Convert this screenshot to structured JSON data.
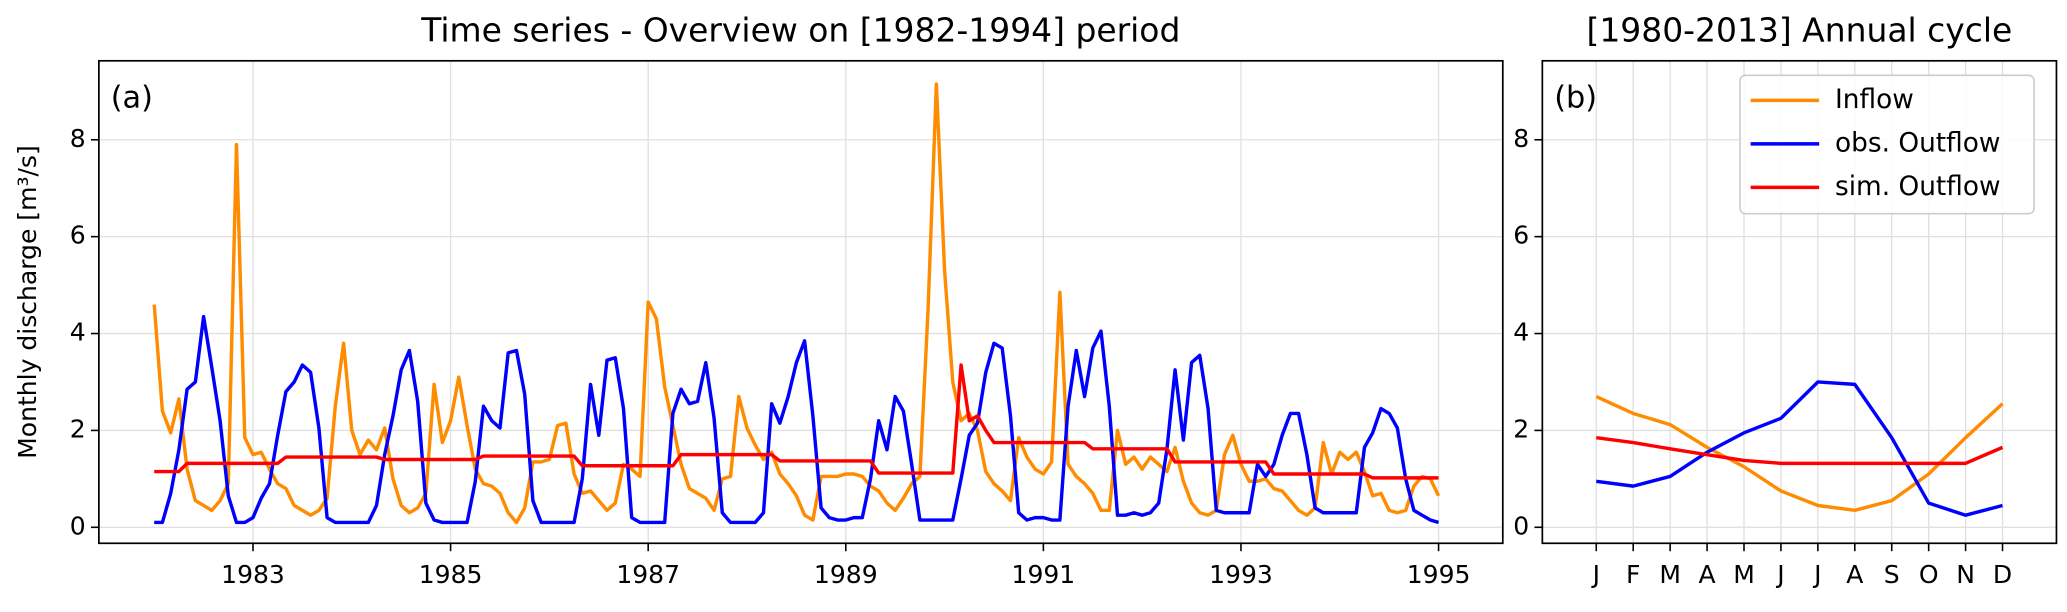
{
  "chart_data": [
    {
      "type": "line",
      "title": "Time series - Overview on [1982-1994] period",
      "ylabel": "Monthly discharge [m³/s]",
      "annotation": "(a)",
      "x": [
        1982.0,
        1982.083,
        1982.167,
        1982.25,
        1982.333,
        1982.417,
        1982.5,
        1982.583,
        1982.667,
        1982.75,
        1982.833,
        1982.917,
        1983.0,
        1983.083,
        1983.167,
        1983.25,
        1983.333,
        1983.417,
        1983.5,
        1983.583,
        1983.667,
        1983.75,
        1983.833,
        1983.917,
        1984.0,
        1984.083,
        1984.167,
        1984.25,
        1984.333,
        1984.417,
        1984.5,
        1984.583,
        1984.667,
        1984.75,
        1984.833,
        1984.917,
        1985.0,
        1985.083,
        1985.167,
        1985.25,
        1985.333,
        1985.417,
        1985.5,
        1985.583,
        1985.667,
        1985.75,
        1985.833,
        1985.917,
        1986.0,
        1986.083,
        1986.167,
        1986.25,
        1986.333,
        1986.417,
        1986.5,
        1986.583,
        1986.667,
        1986.75,
        1986.833,
        1986.917,
        1987.0,
        1987.083,
        1987.167,
        1987.25,
        1987.333,
        1987.417,
        1987.5,
        1987.583,
        1987.667,
        1987.75,
        1987.833,
        1987.917,
        1988.0,
        1988.083,
        1988.167,
        1988.25,
        1988.333,
        1988.417,
        1988.5,
        1988.583,
        1988.667,
        1988.75,
        1988.833,
        1988.917,
        1989.0,
        1989.083,
        1989.167,
        1989.25,
        1989.333,
        1989.417,
        1989.5,
        1989.583,
        1989.667,
        1989.75,
        1989.833,
        1989.917,
        1990.0,
        1990.083,
        1990.167,
        1990.25,
        1990.333,
        1990.417,
        1990.5,
        1990.583,
        1990.667,
        1990.75,
        1990.833,
        1990.917,
        1991.0,
        1991.083,
        1991.167,
        1991.25,
        1991.333,
        1991.417,
        1991.5,
        1991.583,
        1991.667,
        1991.75,
        1991.833,
        1991.917,
        1992.0,
        1992.083,
        1992.167,
        1992.25,
        1992.333,
        1992.417,
        1992.5,
        1992.583,
        1992.667,
        1992.75,
        1992.833,
        1992.917,
        1993.0,
        1993.083,
        1993.167,
        1993.25,
        1993.333,
        1993.417,
        1993.5,
        1993.583,
        1993.667,
        1993.75,
        1993.833,
        1993.917,
        1994.0,
        1994.083,
        1994.167,
        1994.25,
        1994.333,
        1994.417,
        1994.5,
        1994.583,
        1994.667,
        1994.75,
        1994.833,
        1994.917,
        1995.0
      ],
      "series": [
        {
          "color": "#ff8c00",
          "values": [
            4.6,
            2.4,
            1.95,
            2.65,
            1.2,
            0.55,
            0.45,
            0.35,
            0.55,
            0.9,
            7.9,
            1.85,
            1.5,
            1.55,
            1.2,
            0.9,
            0.8,
            0.45,
            0.35,
            0.25,
            0.35,
            0.6,
            2.5,
            3.8,
            2.0,
            1.5,
            1.8,
            1.6,
            2.05,
            1.0,
            0.45,
            0.3,
            0.4,
            0.7,
            2.95,
            1.75,
            2.2,
            3.1,
            2.1,
            1.2,
            0.9,
            0.85,
            0.7,
            0.3,
            0.1,
            0.4,
            1.35,
            1.35,
            1.4,
            2.1,
            2.15,
            1.1,
            0.7,
            0.75,
            0.55,
            0.35,
            0.5,
            1.3,
            1.2,
            1.05,
            4.65,
            4.3,
            2.9,
            2.1,
            1.3,
            0.8,
            0.7,
            0.6,
            0.35,
            1.0,
            1.05,
            2.7,
            2.05,
            1.7,
            1.4,
            1.55,
            1.1,
            0.9,
            0.65,
            0.25,
            0.15,
            1.05,
            1.05,
            1.05,
            1.1,
            1.1,
            1.05,
            0.85,
            0.75,
            0.5,
            0.35,
            0.6,
            0.9,
            1.05,
            4.5,
            9.15,
            5.3,
            3.0,
            2.2,
            2.35,
            2.0,
            1.15,
            0.9,
            0.75,
            0.55,
            1.85,
            1.45,
            1.2,
            1.1,
            1.35,
            4.85,
            1.3,
            1.05,
            0.9,
            0.7,
            0.35,
            0.35,
            2.0,
            1.3,
            1.45,
            1.2,
            1.45,
            1.3,
            1.15,
            1.65,
            0.95,
            0.5,
            0.3,
            0.25,
            0.35,
            1.5,
            1.9,
            1.3,
            0.95,
            0.95,
            1.0,
            0.8,
            0.75,
            0.55,
            0.35,
            0.25,
            0.4,
            1.75,
            1.1,
            1.55,
            1.4,
            1.55,
            1.15,
            0.65,
            0.7,
            0.35,
            0.3,
            0.35,
            0.85,
            1.05,
            1.0,
            0.65
          ]
        },
        {
          "color": "#0000ff",
          "values": [
            0.1,
            0.1,
            0.7,
            1.6,
            2.85,
            3.0,
            4.35,
            3.3,
            2.2,
            0.65,
            0.1,
            0.1,
            0.2,
            0.6,
            0.9,
            1.9,
            2.8,
            3.0,
            3.35,
            3.2,
            2.05,
            0.2,
            0.1,
            0.1,
            0.1,
            0.1,
            0.1,
            0.45,
            1.5,
            2.3,
            3.25,
            3.65,
            2.6,
            0.5,
            0.15,
            0.1,
            0.1,
            0.1,
            0.1,
            0.95,
            2.5,
            2.2,
            2.05,
            3.6,
            3.65,
            2.75,
            0.55,
            0.1,
            0.1,
            0.1,
            0.1,
            0.1,
            1.0,
            2.95,
            1.9,
            3.45,
            3.5,
            2.45,
            0.2,
            0.1,
            0.1,
            0.1,
            0.1,
            2.35,
            2.85,
            2.55,
            2.6,
            3.4,
            2.25,
            0.3,
            0.1,
            0.1,
            0.1,
            0.1,
            0.3,
            2.55,
            2.15,
            2.7,
            3.4,
            3.85,
            2.3,
            0.4,
            0.2,
            0.15,
            0.15,
            0.2,
            0.2,
            1.0,
            2.2,
            1.6,
            2.7,
            2.4,
            1.3,
            0.15,
            0.15,
            0.15,
            0.15,
            0.15,
            1.0,
            1.9,
            2.15,
            3.2,
            3.8,
            3.7,
            2.3,
            0.3,
            0.15,
            0.2,
            0.2,
            0.15,
            0.15,
            2.5,
            3.65,
            2.7,
            3.7,
            4.05,
            2.5,
            0.25,
            0.25,
            0.3,
            0.25,
            0.3,
            0.5,
            1.6,
            3.25,
            1.8,
            3.4,
            3.55,
            2.45,
            0.35,
            0.3,
            0.3,
            0.3,
            0.3,
            1.3,
            1.05,
            1.3,
            1.9,
            2.35,
            2.35,
            1.5,
            0.4,
            0.3,
            0.3,
            0.3,
            0.3,
            0.3,
            1.65,
            1.95,
            2.45,
            2.35,
            2.05,
            1.0,
            0.35,
            0.25,
            0.15,
            0.1
          ]
        },
        {
          "color": "#ff0000",
          "values": [
            1.15,
            1.15,
            1.15,
            1.15,
            1.32,
            1.32,
            1.32,
            1.32,
            1.32,
            1.32,
            1.32,
            1.32,
            1.32,
            1.32,
            1.32,
            1.32,
            1.45,
            1.45,
            1.45,
            1.45,
            1.45,
            1.45,
            1.45,
            1.45,
            1.45,
            1.45,
            1.45,
            1.45,
            1.4,
            1.4,
            1.4,
            1.4,
            1.4,
            1.4,
            1.4,
            1.4,
            1.4,
            1.4,
            1.4,
            1.4,
            1.47,
            1.47,
            1.47,
            1.47,
            1.47,
            1.47,
            1.47,
            1.47,
            1.47,
            1.47,
            1.47,
            1.47,
            1.27,
            1.27,
            1.27,
            1.27,
            1.27,
            1.27,
            1.27,
            1.27,
            1.27,
            1.27,
            1.27,
            1.27,
            1.5,
            1.5,
            1.5,
            1.5,
            1.5,
            1.5,
            1.5,
            1.5,
            1.5,
            1.5,
            1.5,
            1.5,
            1.37,
            1.37,
            1.37,
            1.37,
            1.37,
            1.37,
            1.37,
            1.37,
            1.37,
            1.37,
            1.37,
            1.37,
            1.12,
            1.12,
            1.12,
            1.12,
            1.12,
            1.12,
            1.12,
            1.12,
            1.12,
            1.12,
            3.35,
            2.2,
            2.3,
            2.0,
            1.75,
            1.75,
            1.75,
            1.75,
            1.75,
            1.75,
            1.75,
            1.75,
            1.75,
            1.75,
            1.75,
            1.75,
            1.62,
            1.62,
            1.62,
            1.62,
            1.62,
            1.62,
            1.62,
            1.62,
            1.62,
            1.62,
            1.35,
            1.35,
            1.35,
            1.35,
            1.35,
            1.35,
            1.35,
            1.35,
            1.35,
            1.35,
            1.35,
            1.35,
            1.1,
            1.1,
            1.1,
            1.1,
            1.1,
            1.1,
            1.1,
            1.1,
            1.1,
            1.1,
            1.1,
            1.1,
            1.02,
            1.02,
            1.02,
            1.02,
            1.02,
            1.02,
            1.02,
            1.02,
            1.02
          ]
        }
      ],
      "xlim": [
        1981.44,
        1995.65
      ],
      "xticks": [
        1983,
        1985,
        1987,
        1989,
        1991,
        1993,
        1995
      ],
      "ylim": [
        -0.33,
        9.63
      ],
      "yticks": [
        0,
        2,
        4,
        6,
        8
      ],
      "grid": true
    },
    {
      "type": "line",
      "title": "[1980-2013] Annual cycle",
      "annotation": "(b)",
      "categories": [
        "J",
        "F",
        "M",
        "A",
        "M",
        "J",
        "J",
        "A",
        "S",
        "O",
        "N",
        "D"
      ],
      "series": [
        {
          "name": "Inflow",
          "color": "#ff8c00",
          "values": [
            2.7,
            2.35,
            2.12,
            1.65,
            1.25,
            0.75,
            0.45,
            0.35,
            0.55,
            1.1,
            1.85,
            2.55
          ]
        },
        {
          "name": "obs. Outflow",
          "color": "#0000ff",
          "values": [
            0.95,
            0.85,
            1.05,
            1.55,
            1.95,
            2.25,
            3.0,
            2.95,
            1.85,
            0.5,
            0.25,
            0.45
          ]
        },
        {
          "name": "sim. Outflow",
          "color": "#ff0000",
          "values": [
            1.85,
            1.75,
            1.62,
            1.5,
            1.38,
            1.32,
            1.32,
            1.32,
            1.32,
            1.32,
            1.32,
            1.65
          ]
        }
      ],
      "ylim": [
        -0.33,
        9.63
      ],
      "yticks": [
        0,
        2,
        4,
        6,
        8
      ],
      "grid": true,
      "legend": "upper right"
    }
  ]
}
